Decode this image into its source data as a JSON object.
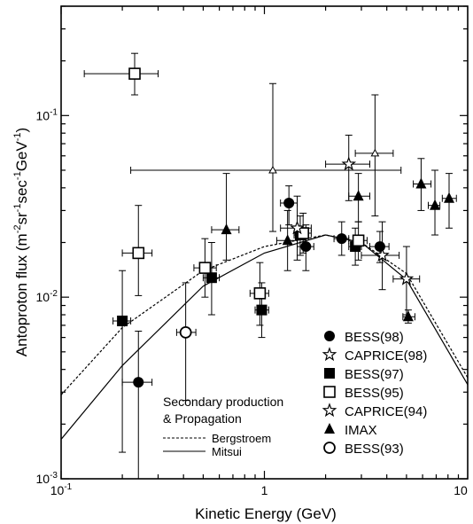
{
  "chart_data": {
    "type": "scatter",
    "title": "",
    "xlabel": "Kinetic Energy (GeV)",
    "ylabel_parts": [
      "Antoproton flux (m",
      "-2",
      "sr",
      "-1",
      "sec",
      "-1",
      "GeV",
      "-1",
      ")"
    ],
    "x_scale": "log",
    "y_scale": "log",
    "xlim": [
      0.1,
      10
    ],
    "ylim": [
      0.001,
      0.4
    ],
    "grid": false,
    "x_ticks": [
      {
        "value": 0.1,
        "label": "10",
        "sup": "-1"
      },
      {
        "value": 1,
        "label": "1",
        "sup": ""
      },
      {
        "value": 10,
        "label": "10",
        "sup": ""
      }
    ],
    "y_ticks": [
      {
        "value": 0.001,
        "label": "10",
        "sup": "-3"
      },
      {
        "value": 0.01,
        "label": "10",
        "sup": "-2"
      },
      {
        "value": 0.1,
        "label": "10",
        "sup": "-1"
      }
    ],
    "legend_position": "bottom-right",
    "series": [
      {
        "name": "BESS(98)",
        "marker": "circle-filled",
        "points": [
          {
            "x": 0.24,
            "y": 0.0034,
            "xlo": 0.2,
            "xhi": 0.28,
            "ylo": 0.0008,
            "yhi": 0.0065
          },
          {
            "x": 1.32,
            "y": 0.033,
            "xlo": 1.2,
            "xhi": 1.45,
            "ylo": 0.025,
            "yhi": 0.041
          },
          {
            "x": 1.6,
            "y": 0.019,
            "xlo": 1.45,
            "xhi": 1.75,
            "ylo": 0.014,
            "yhi": 0.025
          },
          {
            "x": 2.4,
            "y": 0.021,
            "xlo": 2.2,
            "xhi": 2.6,
            "ylo": 0.017,
            "yhi": 0.026
          },
          {
            "x": 3.7,
            "y": 0.019,
            "xlo": 3.3,
            "xhi": 4.1,
            "ylo": 0.0155,
            "yhi": 0.023
          }
        ]
      },
      {
        "name": "CAPRICE(98)",
        "marker": "star-open",
        "points": [
          {
            "x": 2.6,
            "y": 0.054,
            "xlo": 2.0,
            "xhi": 3.3,
            "ylo": 0.034,
            "yhi": 0.078
          },
          {
            "x": 5.0,
            "y": 0.0126,
            "xlo": 4.3,
            "xhi": 5.8,
            "ylo": 0.008,
            "yhi": 0.019
          }
        ]
      },
      {
        "name": "BESS(97)",
        "marker": "square-filled",
        "points": [
          {
            "x": 0.2,
            "y": 0.0074,
            "xlo": 0.18,
            "xhi": 0.22,
            "ylo": 0.0014,
            "yhi": 0.014
          },
          {
            "x": 0.55,
            "y": 0.0128,
            "xlo": 0.5,
            "xhi": 0.6,
            "ylo": 0.008,
            "yhi": 0.02
          },
          {
            "x": 0.97,
            "y": 0.0085,
            "xlo": 0.9,
            "xhi": 1.05,
            "ylo": 0.006,
            "yhi": 0.012
          },
          {
            "x": 1.5,
            "y": 0.022,
            "xlo": 1.4,
            "xhi": 1.6,
            "ylo": 0.017,
            "yhi": 0.028
          },
          {
            "x": 2.8,
            "y": 0.019,
            "xlo": 2.6,
            "xhi": 3.0,
            "ylo": 0.015,
            "yhi": 0.024
          }
        ]
      },
      {
        "name": "BESS(95)",
        "marker": "square-open",
        "points": [
          {
            "x": 0.23,
            "y": 0.17,
            "xlo": 0.13,
            "xhi": 0.3,
            "ylo": 0.13,
            "yhi": 0.22
          },
          {
            "x": 0.24,
            "y": 0.0175,
            "xlo": 0.2,
            "xhi": 0.28,
            "ylo": 0.0102,
            "yhi": 0.032
          },
          {
            "x": 0.51,
            "y": 0.0145,
            "xlo": 0.45,
            "xhi": 0.58,
            "ylo": 0.01,
            "yhi": 0.021
          },
          {
            "x": 0.95,
            "y": 0.0105,
            "xlo": 0.85,
            "xhi": 1.05,
            "ylo": 0.007,
            "yhi": 0.0155
          },
          {
            "x": 1.55,
            "y": 0.0225,
            "xlo": 1.4,
            "xhi": 1.7,
            "ylo": 0.0175,
            "yhi": 0.029
          },
          {
            "x": 2.9,
            "y": 0.0205,
            "xlo": 2.6,
            "xhi": 3.2,
            "ylo": 0.016,
            "yhi": 0.026
          }
        ]
      },
      {
        "name": "CAPRICE(94)",
        "marker": "star-open",
        "points": [
          {
            "x": 1.45,
            "y": 0.024,
            "xlo": 1.2,
            "xhi": 1.7,
            "ylo": 0.016,
            "yhi": 0.036
          },
          {
            "x": 3.8,
            "y": 0.017,
            "xlo": 3.0,
            "xhi": 4.6,
            "ylo": 0.011,
            "yhi": 0.026
          }
        ]
      },
      {
        "name": "IMAX",
        "marker": "triangle-filled",
        "points": [
          {
            "x": 0.65,
            "y": 0.0235,
            "xlo": 0.55,
            "xhi": 0.75,
            "ylo": 0.016,
            "yhi": 0.048
          },
          {
            "x": 1.3,
            "y": 0.0205,
            "xlo": 1.15,
            "xhi": 1.45,
            "ylo": 0.014,
            "yhi": 0.03
          },
          {
            "x": 2.9,
            "y": 0.036,
            "xlo": 2.6,
            "xhi": 3.3,
            "ylo": 0.026,
            "yhi": 0.048
          },
          {
            "x": 5.1,
            "y": 0.0078,
            "xlo": 4.8,
            "xhi": 5.5,
            "ylo": 0.0072,
            "yhi": 0.0085
          },
          {
            "x": 5.9,
            "y": 0.042,
            "xlo": 5.4,
            "xhi": 6.6,
            "ylo": 0.03,
            "yhi": 0.058
          },
          {
            "x": 6.9,
            "y": 0.032,
            "xlo": 6.4,
            "xhi": 7.3,
            "ylo": 0.022,
            "yhi": 0.05
          },
          {
            "x": 8.1,
            "y": 0.035,
            "xlo": 7.5,
            "xhi": 8.8,
            "ylo": 0.024,
            "yhi": 0.048
          }
        ]
      },
      {
        "name": "BESS(93)",
        "marker": "circle-open",
        "points": [
          {
            "x": 0.41,
            "y": 0.0064,
            "xlo": 0.37,
            "xhi": 0.46,
            "ylo": 0.0027,
            "yhi": 0.012
          }
        ]
      }
    ],
    "extra_open_triangles": [
      {
        "x": 1.1,
        "y": 0.05,
        "xlo": 0.22,
        "xhi": 4.7,
        "ylo": 0.023,
        "yhi": 0.15
      },
      {
        "x": 3.5,
        "y": 0.062,
        "xlo": 2.8,
        "xhi": 4.3,
        "ylo": 0.028,
        "yhi": 0.13
      }
    ],
    "curves": [
      {
        "name": "Bergstroem",
        "style": "dashed",
        "x": [
          0.1,
          0.2,
          0.5,
          1,
          2,
          3,
          5,
          10
        ],
        "y": [
          0.0029,
          0.0068,
          0.014,
          0.019,
          0.022,
          0.02,
          0.0135,
          0.0036
        ]
      },
      {
        "name": "Mitsui",
        "style": "solid",
        "x": [
          0.1,
          0.2,
          0.5,
          1,
          2,
          3,
          5,
          10
        ],
        "y": [
          0.00165,
          0.0042,
          0.0115,
          0.0175,
          0.022,
          0.02,
          0.0125,
          0.0033
        ]
      }
    ],
    "annotation": {
      "line1": "Secondary production",
      "line2": "& Propagation"
    }
  }
}
